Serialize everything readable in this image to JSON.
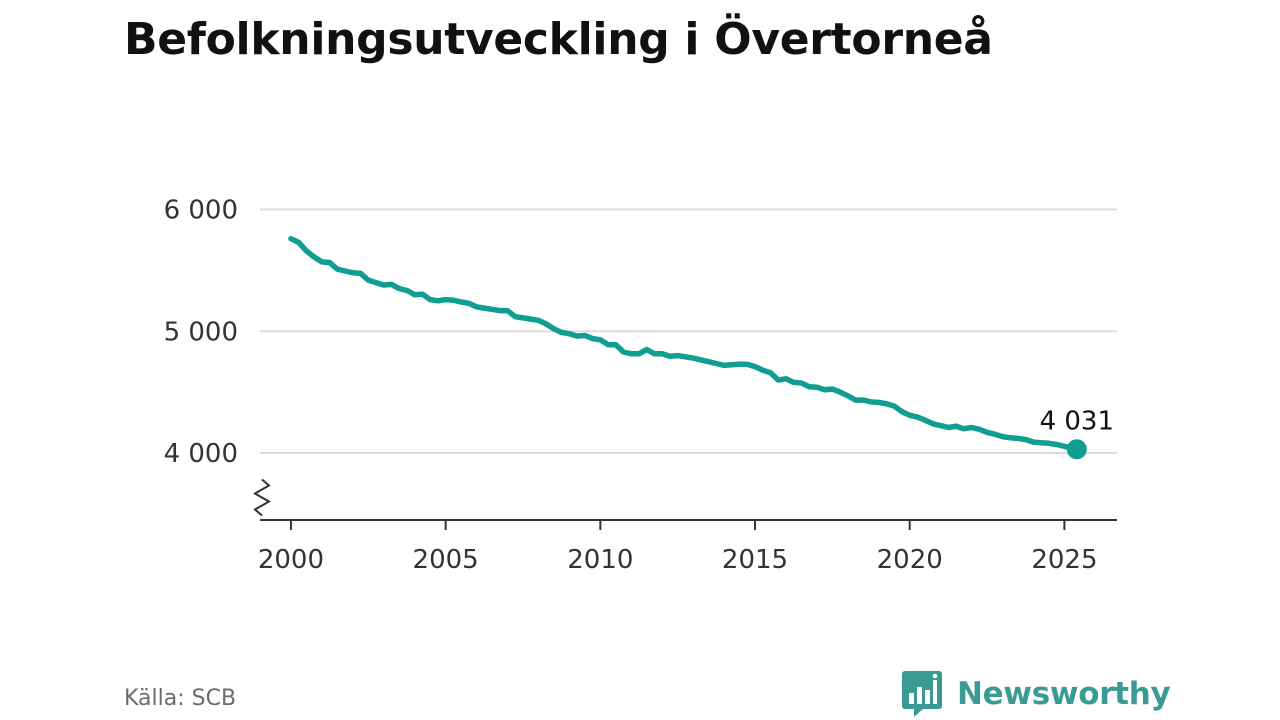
{
  "title": "Befolkningsutveckling i Övertorneå",
  "source": "Källa: SCB",
  "brand": "Newsworthy",
  "colors": {
    "line": "#0f9e91",
    "grid": "#dddddd",
    "axis": "#333333",
    "brand": "#3a9a94"
  },
  "chart_data": {
    "type": "line",
    "title": "Befolkningsutveckling i Övertorneå",
    "xlabel": "",
    "ylabel": "",
    "xlim": [
      1999,
      2026.7
    ],
    "ylim": [
      3450,
      6000
    ],
    "x_ticks": [
      2000,
      2005,
      2010,
      2015,
      2020,
      2025
    ],
    "x_tick_labels": [
      "2000",
      "2005",
      "2010",
      "2015",
      "2020",
      "2025"
    ],
    "y_ticks": [
      4000,
      5000,
      6000
    ],
    "y_tick_labels": [
      "4 000",
      "5 000",
      "6 000"
    ],
    "axis_break": "y",
    "grid": "horizontal",
    "end_label": "4 031",
    "series": [
      {
        "values": [
          [
            2000.0,
            5760
          ],
          [
            2000.25,
            5730
          ],
          [
            2000.5,
            5660
          ],
          [
            2000.75,
            5610
          ],
          [
            2001.0,
            5570
          ],
          [
            2001.25,
            5565
          ],
          [
            2001.5,
            5510
          ],
          [
            2001.75,
            5495
          ],
          [
            2002.0,
            5480
          ],
          [
            2002.25,
            5475
          ],
          [
            2002.5,
            5420
          ],
          [
            2002.75,
            5400
          ],
          [
            2003.0,
            5380
          ],
          [
            2003.25,
            5385
          ],
          [
            2003.5,
            5350
          ],
          [
            2003.75,
            5335
          ],
          [
            2004.0,
            5300
          ],
          [
            2004.25,
            5305
          ],
          [
            2004.5,
            5260
          ],
          [
            2004.75,
            5250
          ],
          [
            2005.0,
            5260
          ],
          [
            2005.25,
            5255
          ],
          [
            2005.5,
            5240
          ],
          [
            2005.75,
            5230
          ],
          [
            2006.0,
            5200
          ],
          [
            2006.25,
            5190
          ],
          [
            2006.5,
            5180
          ],
          [
            2006.75,
            5170
          ],
          [
            2007.0,
            5170
          ],
          [
            2007.25,
            5120
          ],
          [
            2007.5,
            5110
          ],
          [
            2007.75,
            5100
          ],
          [
            2008.0,
            5090
          ],
          [
            2008.25,
            5060
          ],
          [
            2008.5,
            5020
          ],
          [
            2008.75,
            4990
          ],
          [
            2009.0,
            4980
          ],
          [
            2009.25,
            4960
          ],
          [
            2009.5,
            4965
          ],
          [
            2009.75,
            4940
          ],
          [
            2010.0,
            4930
          ],
          [
            2010.25,
            4890
          ],
          [
            2010.5,
            4890
          ],
          [
            2010.75,
            4830
          ],
          [
            2011.0,
            4815
          ],
          [
            2011.25,
            4815
          ],
          [
            2011.5,
            4850
          ],
          [
            2011.75,
            4815
          ],
          [
            2012.0,
            4815
          ],
          [
            2012.25,
            4795
          ],
          [
            2012.5,
            4800
          ],
          [
            2012.75,
            4790
          ],
          [
            2013.0,
            4780
          ],
          [
            2013.25,
            4765
          ],
          [
            2013.5,
            4750
          ],
          [
            2013.75,
            4735
          ],
          [
            2014.0,
            4720
          ],
          [
            2014.25,
            4725
          ],
          [
            2014.5,
            4730
          ],
          [
            2014.75,
            4728
          ],
          [
            2015.0,
            4710
          ],
          [
            2015.25,
            4680
          ],
          [
            2015.5,
            4660
          ],
          [
            2015.75,
            4600
          ],
          [
            2016.0,
            4610
          ],
          [
            2016.25,
            4580
          ],
          [
            2016.5,
            4575
          ],
          [
            2016.75,
            4545
          ],
          [
            2017.0,
            4540
          ],
          [
            2017.25,
            4520
          ],
          [
            2017.5,
            4525
          ],
          [
            2017.75,
            4500
          ],
          [
            2018.0,
            4470
          ],
          [
            2018.25,
            4435
          ],
          [
            2018.5,
            4435
          ],
          [
            2018.75,
            4420
          ],
          [
            2019.0,
            4415
          ],
          [
            2019.25,
            4405
          ],
          [
            2019.5,
            4385
          ],
          [
            2019.75,
            4340
          ],
          [
            2020.0,
            4310
          ],
          [
            2020.25,
            4295
          ],
          [
            2020.5,
            4270
          ],
          [
            2020.75,
            4240
          ],
          [
            2021.0,
            4225
          ],
          [
            2021.25,
            4210
          ],
          [
            2021.5,
            4220
          ],
          [
            2021.75,
            4200
          ],
          [
            2022.0,
            4210
          ],
          [
            2022.25,
            4195
          ],
          [
            2022.5,
            4170
          ],
          [
            2022.75,
            4155
          ],
          [
            2023.0,
            4135
          ],
          [
            2023.25,
            4125
          ],
          [
            2023.5,
            4120
          ],
          [
            2023.75,
            4110
          ],
          [
            2024.0,
            4090
          ],
          [
            2024.25,
            4085
          ],
          [
            2024.5,
            4080
          ],
          [
            2024.75,
            4070
          ],
          [
            2025.0,
            4055
          ],
          [
            2025.25,
            4040
          ],
          [
            2025.4,
            4031
          ]
        ]
      }
    ]
  }
}
